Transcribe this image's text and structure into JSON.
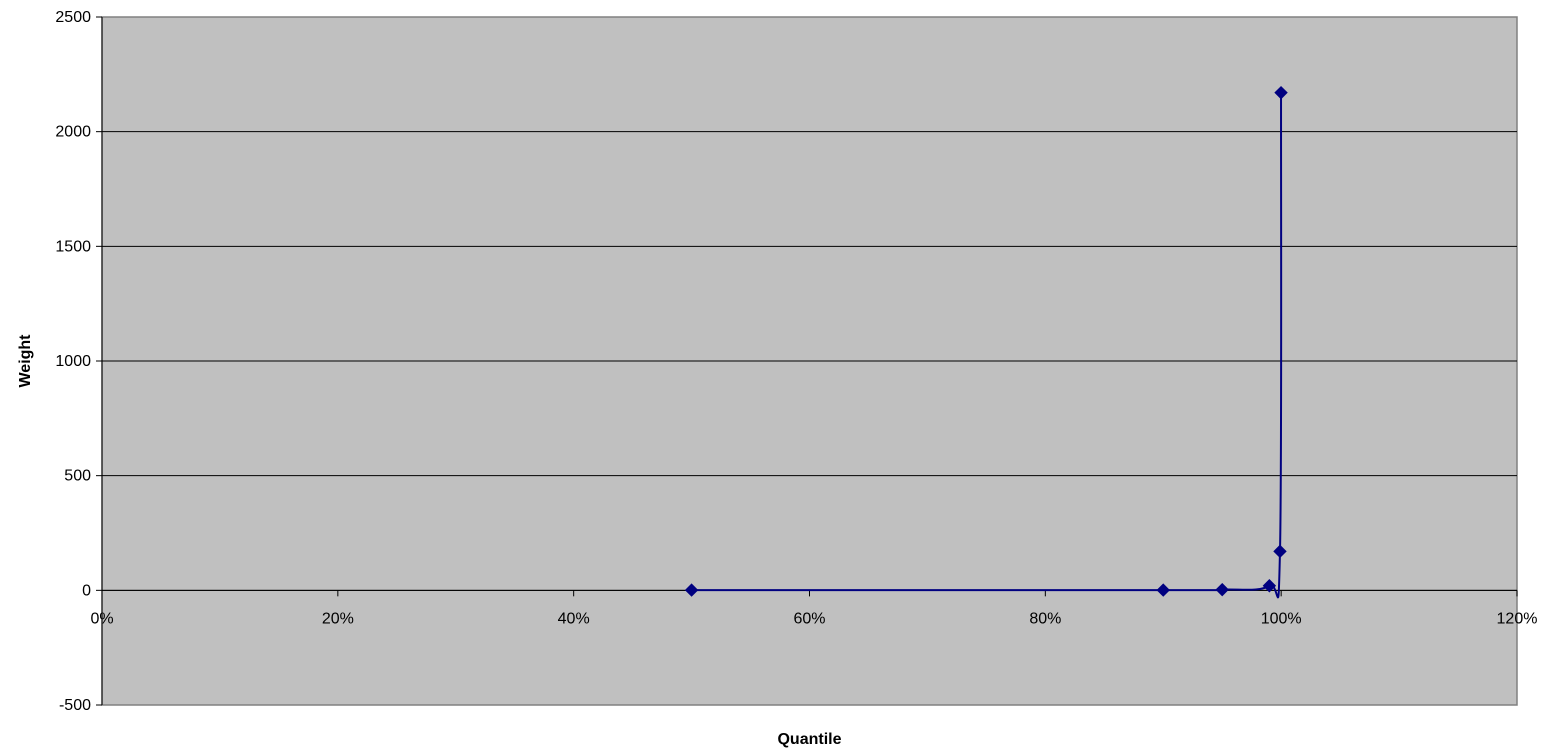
{
  "chart_data": {
    "type": "scatter",
    "title": "",
    "xlabel": "Quantile",
    "ylabel": "Weight",
    "xlim": [
      0,
      1.2
    ],
    "ylim": [
      -500,
      2500
    ],
    "x_ticks": [
      0,
      0.2,
      0.4,
      0.6,
      0.8,
      1.0,
      1.2
    ],
    "x_tick_labels": [
      "0%",
      "20%",
      "40%",
      "60%",
      "80%",
      "100%",
      "120%"
    ],
    "y_ticks": [
      -500,
      0,
      500,
      1000,
      1500,
      2000,
      2500
    ],
    "y_tick_labels": [
      "-500",
      "0",
      "500",
      "1000",
      "1500",
      "2000",
      "2500"
    ],
    "grid": "horizontal major gridlines",
    "legend": "none",
    "line_style": "smoothed line with diamond markers",
    "series": [
      {
        "x": [
          0.5,
          0.9,
          0.95,
          0.99,
          0.999,
          0.9999
        ],
        "y": [
          1,
          1,
          3,
          20,
          170,
          2170
        ]
      }
    ],
    "colors": {
      "plot_background": "#C0C0C0",
      "series": "#000080",
      "gridline": "#000000",
      "plot_border": "#808080"
    }
  }
}
